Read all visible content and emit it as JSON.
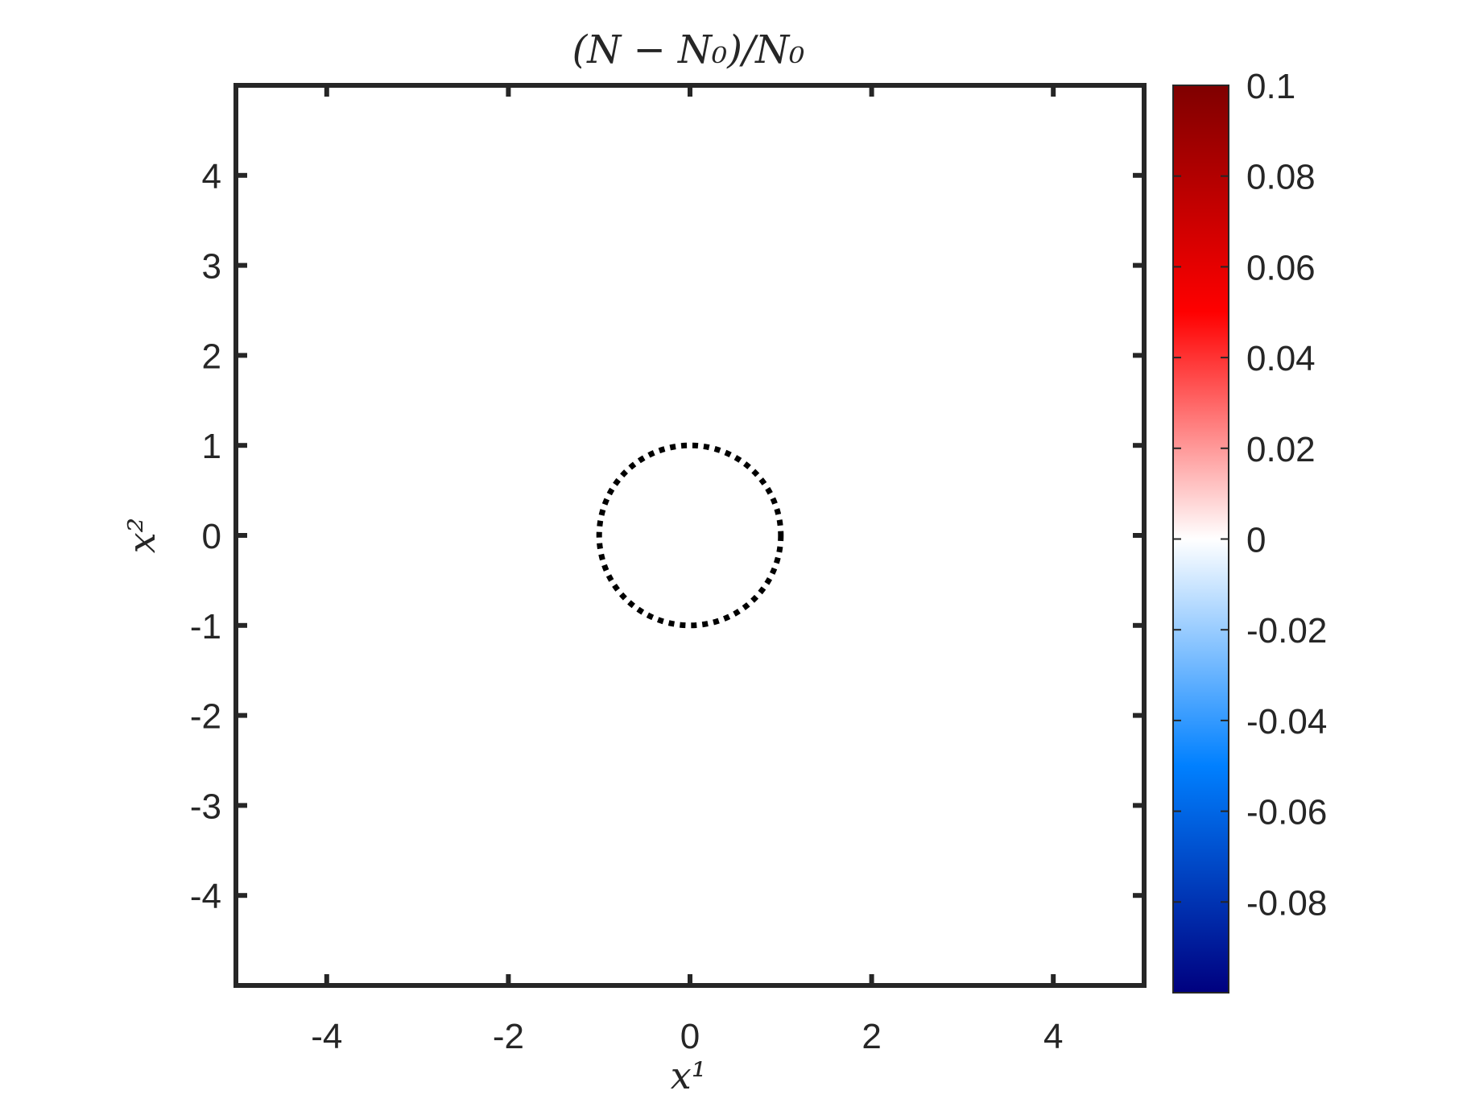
{
  "chart_data": {
    "type": "heatmap",
    "title": "(N − N₀)/N₀",
    "xlabel": "x¹",
    "ylabel": "x²",
    "xlim": [
      -5,
      5
    ],
    "ylim": [
      -5,
      5
    ],
    "xticks": [
      -4,
      -2,
      0,
      2,
      4
    ],
    "xtick_labels": [
      "-4",
      "-2",
      "0",
      "2",
      "4"
    ],
    "yticks": [
      4,
      3,
      2,
      1,
      0,
      -1,
      -2,
      -3,
      -4
    ],
    "ytick_labels": [
      "4",
      "3",
      "2",
      "1",
      "0",
      "-1",
      "-2",
      "-3",
      "-4"
    ],
    "grid": false,
    "field_value": 0,
    "annotations": [
      {
        "type": "circle",
        "center": [
          0,
          0
        ],
        "radius": 1,
        "style": "dotted",
        "color": "#000000"
      }
    ],
    "colorbar": {
      "range": [
        -0.1,
        0.1
      ],
      "ticks": [
        0.1,
        0.08,
        0.06,
        0.04,
        0.02,
        0,
        -0.02,
        -0.04,
        -0.06,
        -0.08
      ],
      "tick_labels": [
        "0.1",
        "0.08",
        "0.06",
        "0.04",
        "0.02",
        "0",
        "-0.02",
        "-0.04",
        "-0.06",
        "-0.08"
      ],
      "colormap": [
        "#00007f",
        "#0080ff",
        "#ffffff",
        "#ff0000",
        "#7f0000"
      ],
      "placement": "right"
    }
  }
}
